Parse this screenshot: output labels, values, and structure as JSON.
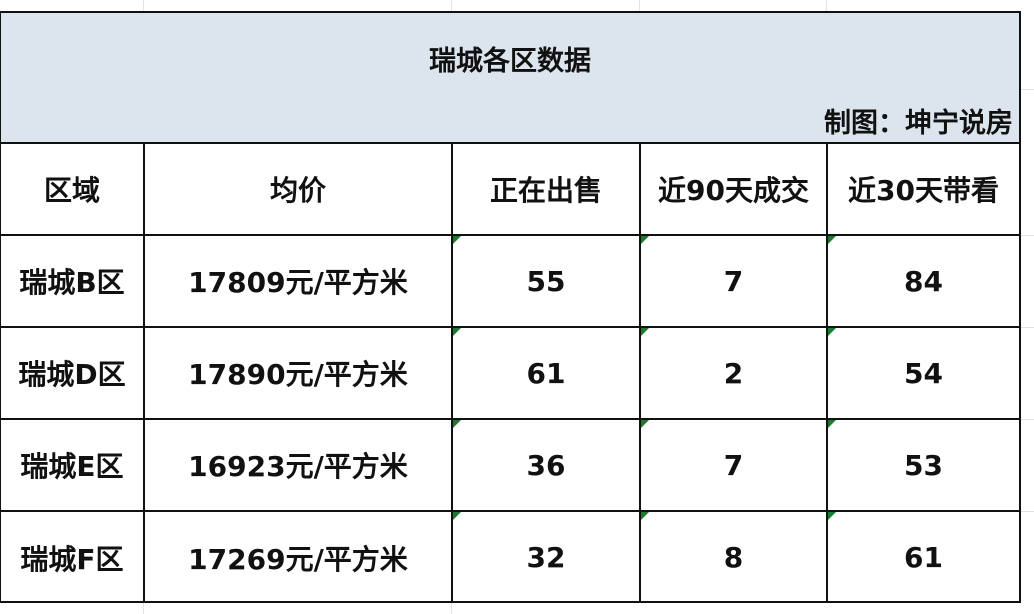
{
  "title": "瑞城各区数据",
  "credit": "制图：坤宁说房",
  "columns": [
    "区域",
    "均价",
    "正在出售",
    "近90天成交",
    "近30天带看"
  ],
  "rows": [
    [
      "瑞城B区",
      "17809元/平方米",
      "55",
      "7",
      "84"
    ],
    [
      "瑞城D区",
      "17890元/平方米",
      "61",
      "2",
      "54"
    ],
    [
      "瑞城E区",
      "16923元/平方米",
      "36",
      "7",
      "53"
    ],
    [
      "瑞城F区",
      "17269元/平方米",
      "32",
      "8",
      "61"
    ]
  ],
  "colors": {
    "banner": "#dce4ee",
    "indicator": "#1e7a2e"
  }
}
